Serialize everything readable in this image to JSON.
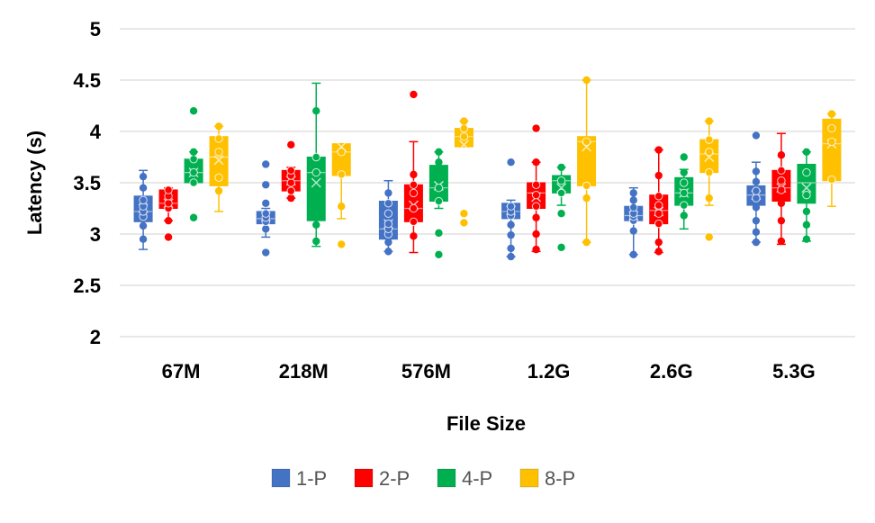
{
  "chart_data": {
    "type": "boxplot",
    "title": "",
    "xlabel": "File Size",
    "ylabel": "Latency (s)",
    "ylim": [
      2,
      5
    ],
    "yticks": [
      2,
      2.5,
      3,
      3.5,
      4,
      4.5,
      5
    ],
    "ytick_labels": [
      "2",
      "2.5",
      "3",
      "3.5",
      "4",
      "4.5",
      "5"
    ],
    "grid": true,
    "legend_position": "bottom",
    "categories": [
      "67M",
      "218M",
      "576M",
      "1.2G",
      "2.6G",
      "5.3G"
    ],
    "series": [
      {
        "name": "1-P",
        "color": "#4472C4",
        "boxes": [
          {
            "min": 2.85,
            "q1": 3.12,
            "median": 3.22,
            "q3": 3.37,
            "max": 3.62,
            "mean": 3.25,
            "points": [
              2.95,
              3.08,
              3.17,
              3.22,
              3.27,
              3.33,
              3.45,
              3.56
            ]
          },
          {
            "min": 2.97,
            "q1": 3.1,
            "median": 3.15,
            "q3": 3.22,
            "max": 3.25,
            "mean": 3.17,
            "points": [
              2.82,
              3.05,
              3.12,
              3.16,
              3.2,
              3.3,
              3.48,
              3.68
            ]
          },
          {
            "min": 2.83,
            "q1": 2.95,
            "median": 3.05,
            "q3": 3.32,
            "max": 3.52,
            "mean": 3.1,
            "points": [
              2.83,
              2.92,
              3.0,
              3.05,
              3.1,
              3.2,
              3.3,
              3.4
            ]
          },
          {
            "min": 2.78,
            "q1": 3.15,
            "median": 3.22,
            "q3": 3.3,
            "max": 3.33,
            "mean": 3.23,
            "points": [
              2.78,
              2.86,
              2.99,
              3.09,
              3.18,
              3.22,
              3.27,
              3.7
            ]
          },
          {
            "min": 2.8,
            "q1": 3.13,
            "median": 3.18,
            "q3": 3.27,
            "max": 3.45,
            "mean": 3.18,
            "points": [
              2.8,
              3.03,
              3.13,
              3.17,
              3.2,
              3.26,
              3.33,
              3.4
            ]
          },
          {
            "min": 2.92,
            "q1": 3.28,
            "median": 3.38,
            "q3": 3.47,
            "max": 3.7,
            "mean": 3.38,
            "points": [
              2.92,
              3.02,
              3.13,
              3.26,
              3.35,
              3.42,
              3.51,
              3.61,
              3.96
            ]
          }
        ]
      },
      {
        "name": "2-P",
        "color": "#FF0000",
        "boxes": [
          {
            "min": 3.13,
            "q1": 3.25,
            "median": 3.3,
            "q3": 3.43,
            "max": 3.45,
            "mean": 3.3,
            "points": [
              2.97,
              3.13,
              3.25,
              3.3,
              3.37,
              3.43
            ]
          },
          {
            "min": 3.35,
            "q1": 3.42,
            "median": 3.52,
            "q3": 3.62,
            "max": 3.65,
            "mean": 3.52,
            "points": [
              3.35,
              3.42,
              3.5,
              3.57,
              3.62,
              3.87
            ]
          },
          {
            "min": 2.82,
            "q1": 3.12,
            "median": 3.25,
            "q3": 3.48,
            "max": 3.9,
            "mean": 3.28,
            "points": [
              2.98,
              3.12,
              3.25,
              3.4,
              3.48,
              3.58,
              4.36
            ]
          },
          {
            "min": 2.83,
            "q1": 3.25,
            "median": 3.4,
            "q3": 3.5,
            "max": 3.7,
            "mean": 3.36,
            "points": [
              2.85,
              3.0,
              3.16,
              3.27,
              3.38,
              3.48,
              3.7,
              4.03
            ]
          },
          {
            "min": 2.82,
            "q1": 3.1,
            "median": 3.23,
            "q3": 3.38,
            "max": 3.82,
            "mean": 3.22,
            "points": [
              2.83,
              2.92,
              3.1,
              3.2,
              3.28,
              3.37,
              3.57,
              3.82
            ]
          },
          {
            "min": 2.9,
            "q1": 3.32,
            "median": 3.45,
            "q3": 3.62,
            "max": 3.98,
            "mean": 3.45,
            "points": [
              2.93,
              3.13,
              3.3,
              3.43,
              3.52,
              3.62,
              3.77
            ]
          }
        ]
      },
      {
        "name": "4-P",
        "color": "#00B050",
        "boxes": [
          {
            "min": 3.5,
            "q1": 3.5,
            "median": 3.6,
            "q3": 3.73,
            "max": 3.8,
            "mean": 3.6,
            "points": [
              3.16,
              3.5,
              3.6,
              3.73,
              3.8,
              4.2
            ]
          },
          {
            "min": 2.88,
            "q1": 3.13,
            "median": 3.6,
            "q3": 3.75,
            "max": 4.47,
            "mean": 3.5,
            "points": [
              2.93,
              3.09,
              3.6,
              3.75,
              4.2
            ]
          },
          {
            "min": 3.25,
            "q1": 3.32,
            "median": 3.45,
            "q3": 3.67,
            "max": 3.8,
            "mean": 3.47,
            "points": [
              2.8,
              3.01,
              3.32,
              3.45,
              3.7,
              3.8
            ]
          },
          {
            "min": 3.28,
            "q1": 3.4,
            "median": 3.52,
            "q3": 3.57,
            "max": 3.65,
            "mean": 3.45,
            "points": [
              2.87,
              3.2,
              3.4,
              3.52,
              3.65
            ]
          },
          {
            "min": 3.05,
            "q1": 3.28,
            "median": 3.4,
            "q3": 3.55,
            "max": 3.63,
            "mean": 3.4,
            "points": [
              3.18,
              3.28,
              3.4,
              3.5,
              3.6,
              3.75
            ]
          },
          {
            "min": 2.93,
            "q1": 3.3,
            "median": 3.5,
            "q3": 3.68,
            "max": 3.8,
            "mean": 3.45,
            "points": [
              2.95,
              3.09,
              3.22,
              3.38,
              3.6,
              3.8
            ]
          }
        ]
      },
      {
        "name": "8-P",
        "color": "#FFC000",
        "boxes": [
          {
            "min": 3.22,
            "q1": 3.47,
            "median": 3.75,
            "q3": 3.95,
            "max": 4.05,
            "mean": 3.72,
            "points": [
              3.42,
              3.55,
              3.8,
              3.93,
              4.05
            ]
          },
          {
            "min": 3.15,
            "q1": 3.57,
            "median": 3.8,
            "q3": 3.88,
            "max": 3.88,
            "mean": 3.85,
            "points": [
              2.9,
              3.27,
              3.58,
              3.8
            ]
          },
          {
            "min": 3.85,
            "q1": 3.85,
            "median": 3.95,
            "q3": 4.03,
            "max": 4.1,
            "mean": 3.87,
            "points": [
              3.11,
              3.2,
              3.95,
              4.03,
              4.1
            ]
          },
          {
            "min": 2.92,
            "q1": 3.47,
            "median": 3.9,
            "q3": 3.95,
            "max": 4.5,
            "mean": 3.85,
            "points": [
              2.92,
              3.35,
              3.47,
              3.9,
              4.5
            ]
          },
          {
            "min": 3.28,
            "q1": 3.6,
            "median": 3.78,
            "q3": 3.92,
            "max": 4.1,
            "mean": 3.75,
            "points": [
              2.97,
              3.35,
              3.6,
              3.8,
              3.92,
              4.1
            ]
          },
          {
            "min": 3.27,
            "q1": 3.52,
            "median": 3.88,
            "q3": 4.12,
            "max": 4.17,
            "mean": 3.88,
            "points": [
              3.53,
              3.9,
              4.03,
              4.17
            ]
          }
        ]
      }
    ]
  }
}
